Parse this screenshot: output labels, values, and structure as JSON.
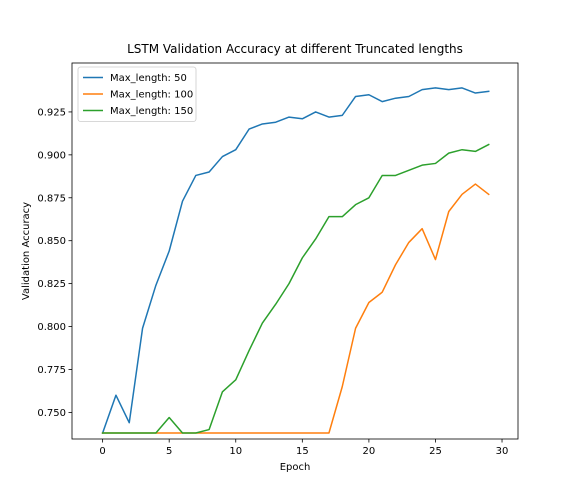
{
  "chart_data": {
    "type": "line",
    "title": "LSTM Validation Accuracy at different Truncated lengths",
    "xlabel": "Epoch",
    "ylabel": "Validation Accuracy",
    "xlim": [
      -2.3,
      31.2
    ],
    "ylim": [
      0.7345,
      0.9535
    ],
    "xticks": [
      0,
      5,
      10,
      15,
      20,
      25,
      30
    ],
    "xtick_labels": [
      "0",
      "5",
      "10",
      "15",
      "20",
      "25",
      "30"
    ],
    "yticks": [
      0.75,
      0.775,
      0.8,
      0.825,
      0.85,
      0.875,
      0.9,
      0.925
    ],
    "ytick_labels": [
      "0.750",
      "0.775",
      "0.800",
      "0.825",
      "0.850",
      "0.875",
      "0.900",
      "0.925"
    ],
    "grid": false,
    "legend_position": "top-left",
    "x": [
      0,
      1,
      2,
      3,
      4,
      5,
      6,
      7,
      8,
      9,
      10,
      11,
      12,
      13,
      14,
      15,
      16,
      17,
      18,
      19,
      20,
      21,
      22,
      23,
      24,
      25,
      26,
      27,
      28,
      29
    ],
    "series": [
      {
        "name": "Max_length: 50",
        "color": "#1f77b4",
        "values": [
          0.738,
          0.76,
          0.744,
          0.799,
          0.824,
          0.844,
          0.873,
          0.888,
          0.89,
          0.899,
          0.903,
          0.915,
          0.918,
          0.919,
          0.922,
          0.921,
          0.925,
          0.922,
          0.923,
          0.934,
          0.935,
          0.931,
          0.933,
          0.934,
          0.938,
          0.939,
          0.938,
          0.939,
          0.936,
          0.937
        ]
      },
      {
        "name": "Max_length: 100",
        "color": "#ff7f0e",
        "values": [
          0.738,
          0.738,
          0.738,
          0.738,
          0.738,
          0.738,
          0.738,
          0.738,
          0.738,
          0.738,
          0.738,
          0.738,
          0.738,
          0.738,
          0.738,
          0.738,
          0.738,
          0.738,
          0.765,
          0.799,
          0.814,
          0.82,
          0.836,
          0.849,
          0.857,
          0.839,
          0.867,
          0.877,
          0.883,
          0.877
        ]
      },
      {
        "name": "Max_length: 150",
        "color": "#2ca02c",
        "values": [
          0.738,
          0.738,
          0.738,
          0.738,
          0.738,
          0.747,
          0.738,
          0.738,
          0.74,
          0.762,
          0.769,
          0.786,
          0.802,
          0.813,
          0.825,
          0.84,
          0.851,
          0.864,
          0.864,
          0.871,
          0.875,
          0.888,
          0.888,
          0.891,
          0.894,
          0.895,
          0.901,
          0.903,
          0.902,
          0.906
        ]
      }
    ]
  }
}
